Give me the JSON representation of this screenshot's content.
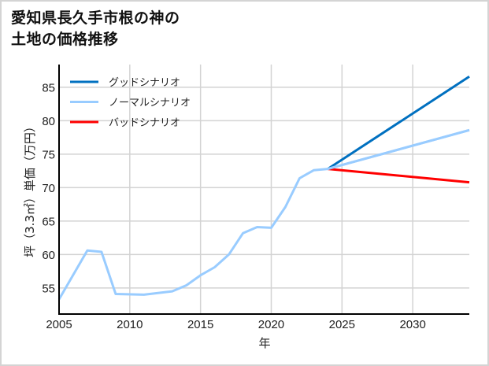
{
  "title": {
    "line1": "愛知県長久手市根の神の",
    "line2": "土地の価格推移"
  },
  "chart_data": {
    "type": "line",
    "title": "愛知県長久手市根の神の土地の価格推移",
    "xlabel": "年",
    "ylabel": "坪（3.3㎡）単価（万円）",
    "xlim": [
      2005,
      2034
    ],
    "ylim": [
      51.1,
      88.4
    ],
    "x_ticks": [
      "2005",
      "2010",
      "2015",
      "2020",
      "2025",
      "2030"
    ],
    "y_ticks": [
      "55",
      "60",
      "65",
      "70",
      "75",
      "80",
      "85"
    ],
    "grid": true,
    "legend_position": "upper left",
    "series": [
      {
        "name": "ノーマルシナリオ",
        "color": "#99ccff",
        "x": [
          2005,
          2007,
          2008,
          2009,
          2011,
          2013,
          2014,
          2015,
          2016,
          2017,
          2018,
          2019,
          2020,
          2021,
          2022,
          2023,
          2024,
          2034
        ],
        "values": [
          53.3,
          60.6,
          60.4,
          54.1,
          54.0,
          54.5,
          55.4,
          56.9,
          58.1,
          60.0,
          63.2,
          64.1,
          64.0,
          67.1,
          71.4,
          72.6,
          72.8,
          78.6
        ]
      },
      {
        "name": "グッドシナリオ",
        "color": "#0070c0",
        "x": [
          2024,
          2034
        ],
        "values": [
          72.8,
          86.6
        ]
      },
      {
        "name": "バッドシナリオ",
        "color": "#ff0000",
        "x": [
          2024,
          2034
        ],
        "values": [
          72.8,
          70.8
        ]
      }
    ]
  },
  "legend": {
    "items": [
      {
        "label": "グッドシナリオ",
        "color": "#0070c0"
      },
      {
        "label": "ノーマルシナリオ",
        "color": "#99ccff"
      },
      {
        "label": "バッドシナリオ",
        "color": "#ff0000"
      }
    ]
  }
}
